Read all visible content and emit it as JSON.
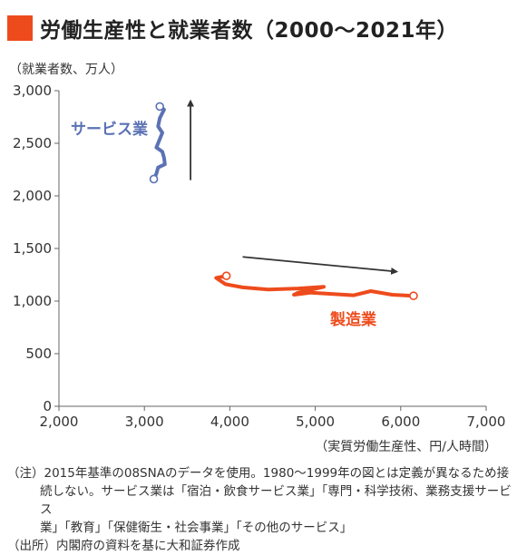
{
  "title": "労働生産性と就業者数（2000〜2021年）",
  "chart_data": {
    "type": "line",
    "y_unit_label": "（就業者数、万人）",
    "x_unit_label": "（実質労働生産性、円/人時間）",
    "xlim": [
      2000,
      7000
    ],
    "ylim": [
      0,
      3000
    ],
    "x_ticks": [
      "2,000",
      "3,000",
      "4,000",
      "5,000",
      "6,000",
      "7,000"
    ],
    "y_ticks": [
      "0",
      "500",
      "1,000",
      "1,500",
      "2,000",
      "2,500",
      "3,000"
    ],
    "grid": false,
    "series": [
      {
        "name": "サービス業",
        "color": "#5b72b5",
        "points": [
          [
            3180,
            2850
          ],
          [
            3230,
            2820
          ],
          [
            3180,
            2740
          ],
          [
            3160,
            2660
          ],
          [
            3210,
            2600
          ],
          [
            3170,
            2520
          ],
          [
            3140,
            2460
          ],
          [
            3210,
            2420
          ],
          [
            3230,
            2360
          ],
          [
            3240,
            2300
          ],
          [
            3160,
            2270
          ],
          [
            3140,
            2210
          ],
          [
            3110,
            2160
          ]
        ]
      },
      {
        "name": "製造業",
        "color": "#ee4b1c",
        "points": [
          [
            3960,
            1240
          ],
          [
            3840,
            1220
          ],
          [
            3950,
            1160
          ],
          [
            4150,
            1130
          ],
          [
            4450,
            1110
          ],
          [
            4800,
            1120
          ],
          [
            5100,
            1135
          ],
          [
            4800,
            1080
          ],
          [
            4750,
            1060
          ],
          [
            4950,
            1080
          ],
          [
            5150,
            1070
          ],
          [
            5450,
            1055
          ],
          [
            5650,
            1095
          ],
          [
            5900,
            1060
          ],
          [
            6150,
            1050
          ]
        ]
      }
    ],
    "arrows": [
      {
        "from": [
          3540,
          2150
        ],
        "to": [
          3540,
          2900
        ],
        "color": "#333333"
      },
      {
        "from": [
          4150,
          1420
        ],
        "to": [
          5950,
          1280
        ],
        "color": "#333333"
      }
    ]
  },
  "notes": [
    "（注）2015年基準の08SNAのデータを使用。1980〜1999年の図とは定義が異なるため接",
    "続しない。サービス業は「宿泊・飲食サービス業」「専門・科学技術、業務支援サービス",
    "業」「教育」「保健衛生・社会事業」「その他のサービス」",
    "（出所）内閣府の資料を基に大和証券作成"
  ]
}
